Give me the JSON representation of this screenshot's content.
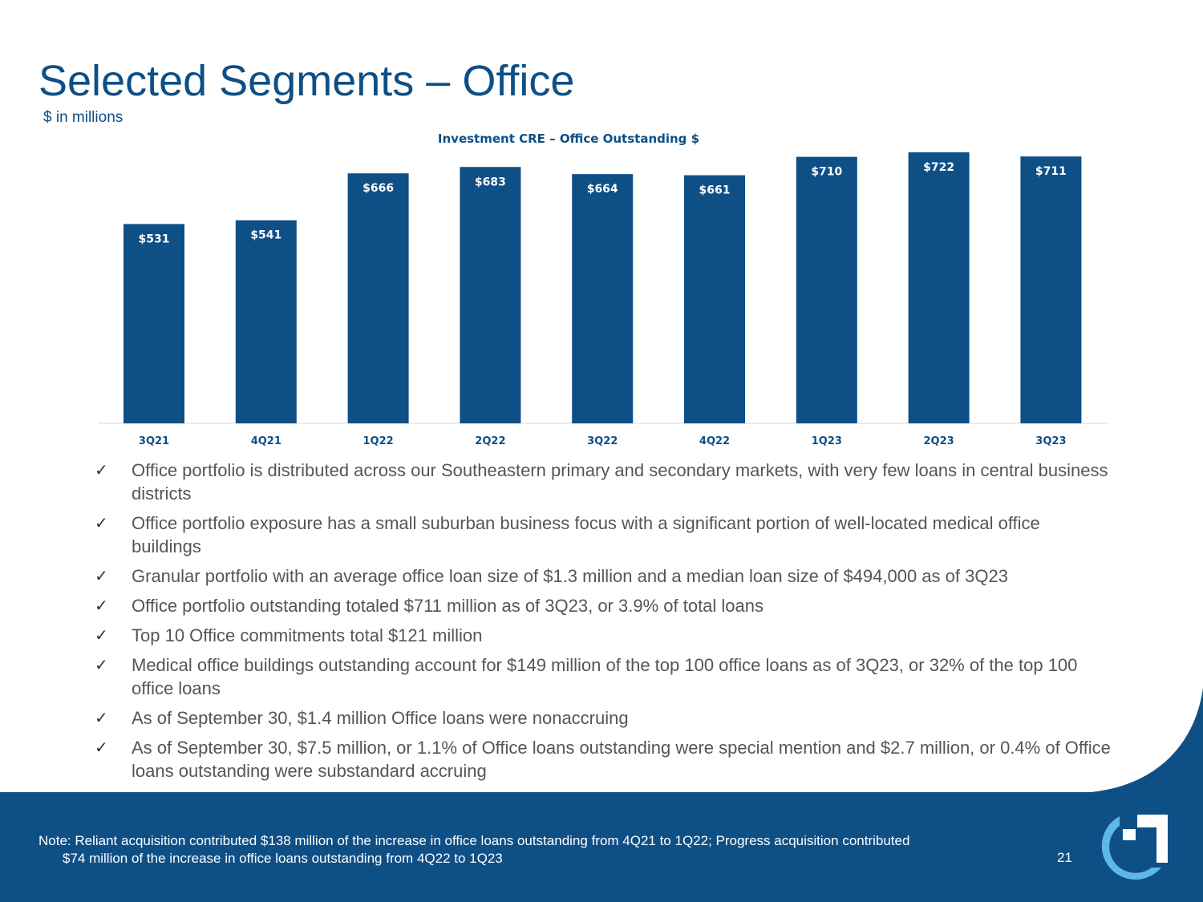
{
  "header": {
    "title": "Selected Segments – Office",
    "subtitle": "$ in millions"
  },
  "colors": {
    "brand_blue": "#0e4f86",
    "bar_blue": "#0e4f86",
    "light_blue": "#5bb8e8",
    "text_gray": "#555555"
  },
  "chart_data": {
    "type": "bar",
    "title": "Investment CRE – Office Outstanding $",
    "categories": [
      "3Q21",
      "4Q21",
      "1Q22",
      "2Q22",
      "3Q22",
      "4Q22",
      "1Q23",
      "2Q23",
      "3Q23"
    ],
    "values": [
      531,
      541,
      666,
      683,
      664,
      661,
      710,
      722,
      711
    ],
    "data_labels": [
      "$531",
      "$541",
      "$666",
      "$683",
      "$664",
      "$661",
      "$710",
      "$722",
      "$711"
    ],
    "xlabel": "",
    "ylabel": "",
    "ylim": [
      0,
      722
    ],
    "grid": false,
    "legend": "none"
  },
  "bullets": [
    "Office portfolio is distributed across our Southeastern primary and secondary markets, with very few loans in central business districts",
    "Office portfolio exposure has a small suburban business focus with a significant portion of well-located medical office buildings",
    "Granular portfolio with an average office loan size of $1.3 million and a median loan size of $494,000 as of 3Q23",
    "Office portfolio outstanding totaled $711 million as of 3Q23, or 3.9% of total loans",
    "Top 10 Office commitments total $121 million",
    "Medical office buildings outstanding account for $149 million of the top 100 office loans as of 3Q23, or 32% of the top 100 office loans",
    "As of September 30, $1.4 million Office loans were nonaccruing",
    "As of September 30, $7.5 million, or 1.1% of Office loans outstanding were special mention and $2.7 million, or 0.4% of Office loans outstanding were substandard accruing"
  ],
  "footer": {
    "note_line1": "Note: Reliant acquisition contributed $138 million of the increase in office loans outstanding from 4Q21 to 1Q22; Progress acquisition contributed",
    "note_line2": "$74 million of the increase in office loans outstanding from 4Q22 to 1Q23",
    "page_number": "21"
  },
  "icons": {
    "check": "checkmark-icon",
    "logo": "company-logo-icon"
  }
}
